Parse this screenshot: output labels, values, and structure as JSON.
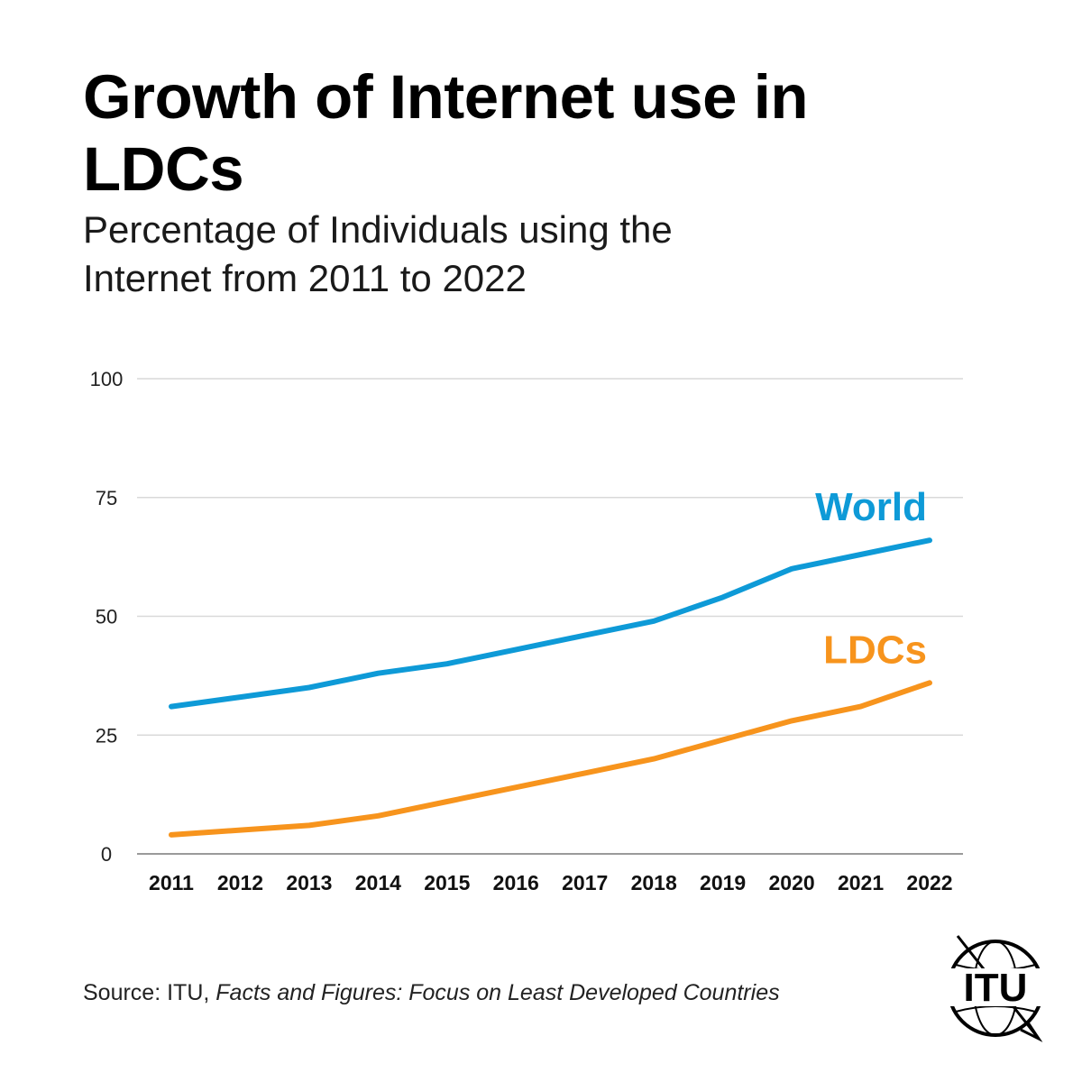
{
  "title": "Growth of Internet use in LDCs",
  "subtitle": "Percentage of Individuals using the Internet from 2011 to 2022",
  "source": {
    "prefix": "Source: ITU, ",
    "publication": "Facts and Figures: Focus on Least Developed Countries"
  },
  "logo": {
    "text": "ITU",
    "icon": "itu-globe-logo"
  },
  "colors": {
    "world": "#0e9ad7",
    "ldcs": "#f7941d",
    "grid": "#d9d9d9",
    "axis": "#9a9a9a"
  },
  "chart_data": {
    "type": "line",
    "title": "Growth of Internet use in LDCs",
    "subtitle": "Percentage of Individuals using the Internet from 2011 to 2022",
    "xlabel": "",
    "ylabel": "",
    "categories": [
      "2011",
      "2012",
      "2013",
      "2014",
      "2015",
      "2016",
      "2017",
      "2018",
      "2019",
      "2020",
      "2021",
      "2022"
    ],
    "ylim": [
      0,
      100
    ],
    "yticks": [
      0,
      25,
      50,
      75,
      100
    ],
    "grid": true,
    "series": [
      {
        "name": "World",
        "color": "#0e9ad7",
        "values": [
          31,
          33,
          35,
          38,
          40,
          43,
          46,
          49,
          54,
          60,
          63,
          66
        ]
      },
      {
        "name": "LDCs",
        "color": "#f7941d",
        "values": [
          4,
          5,
          6,
          8,
          11,
          14,
          17,
          20,
          24,
          28,
          31,
          36
        ]
      }
    ]
  }
}
